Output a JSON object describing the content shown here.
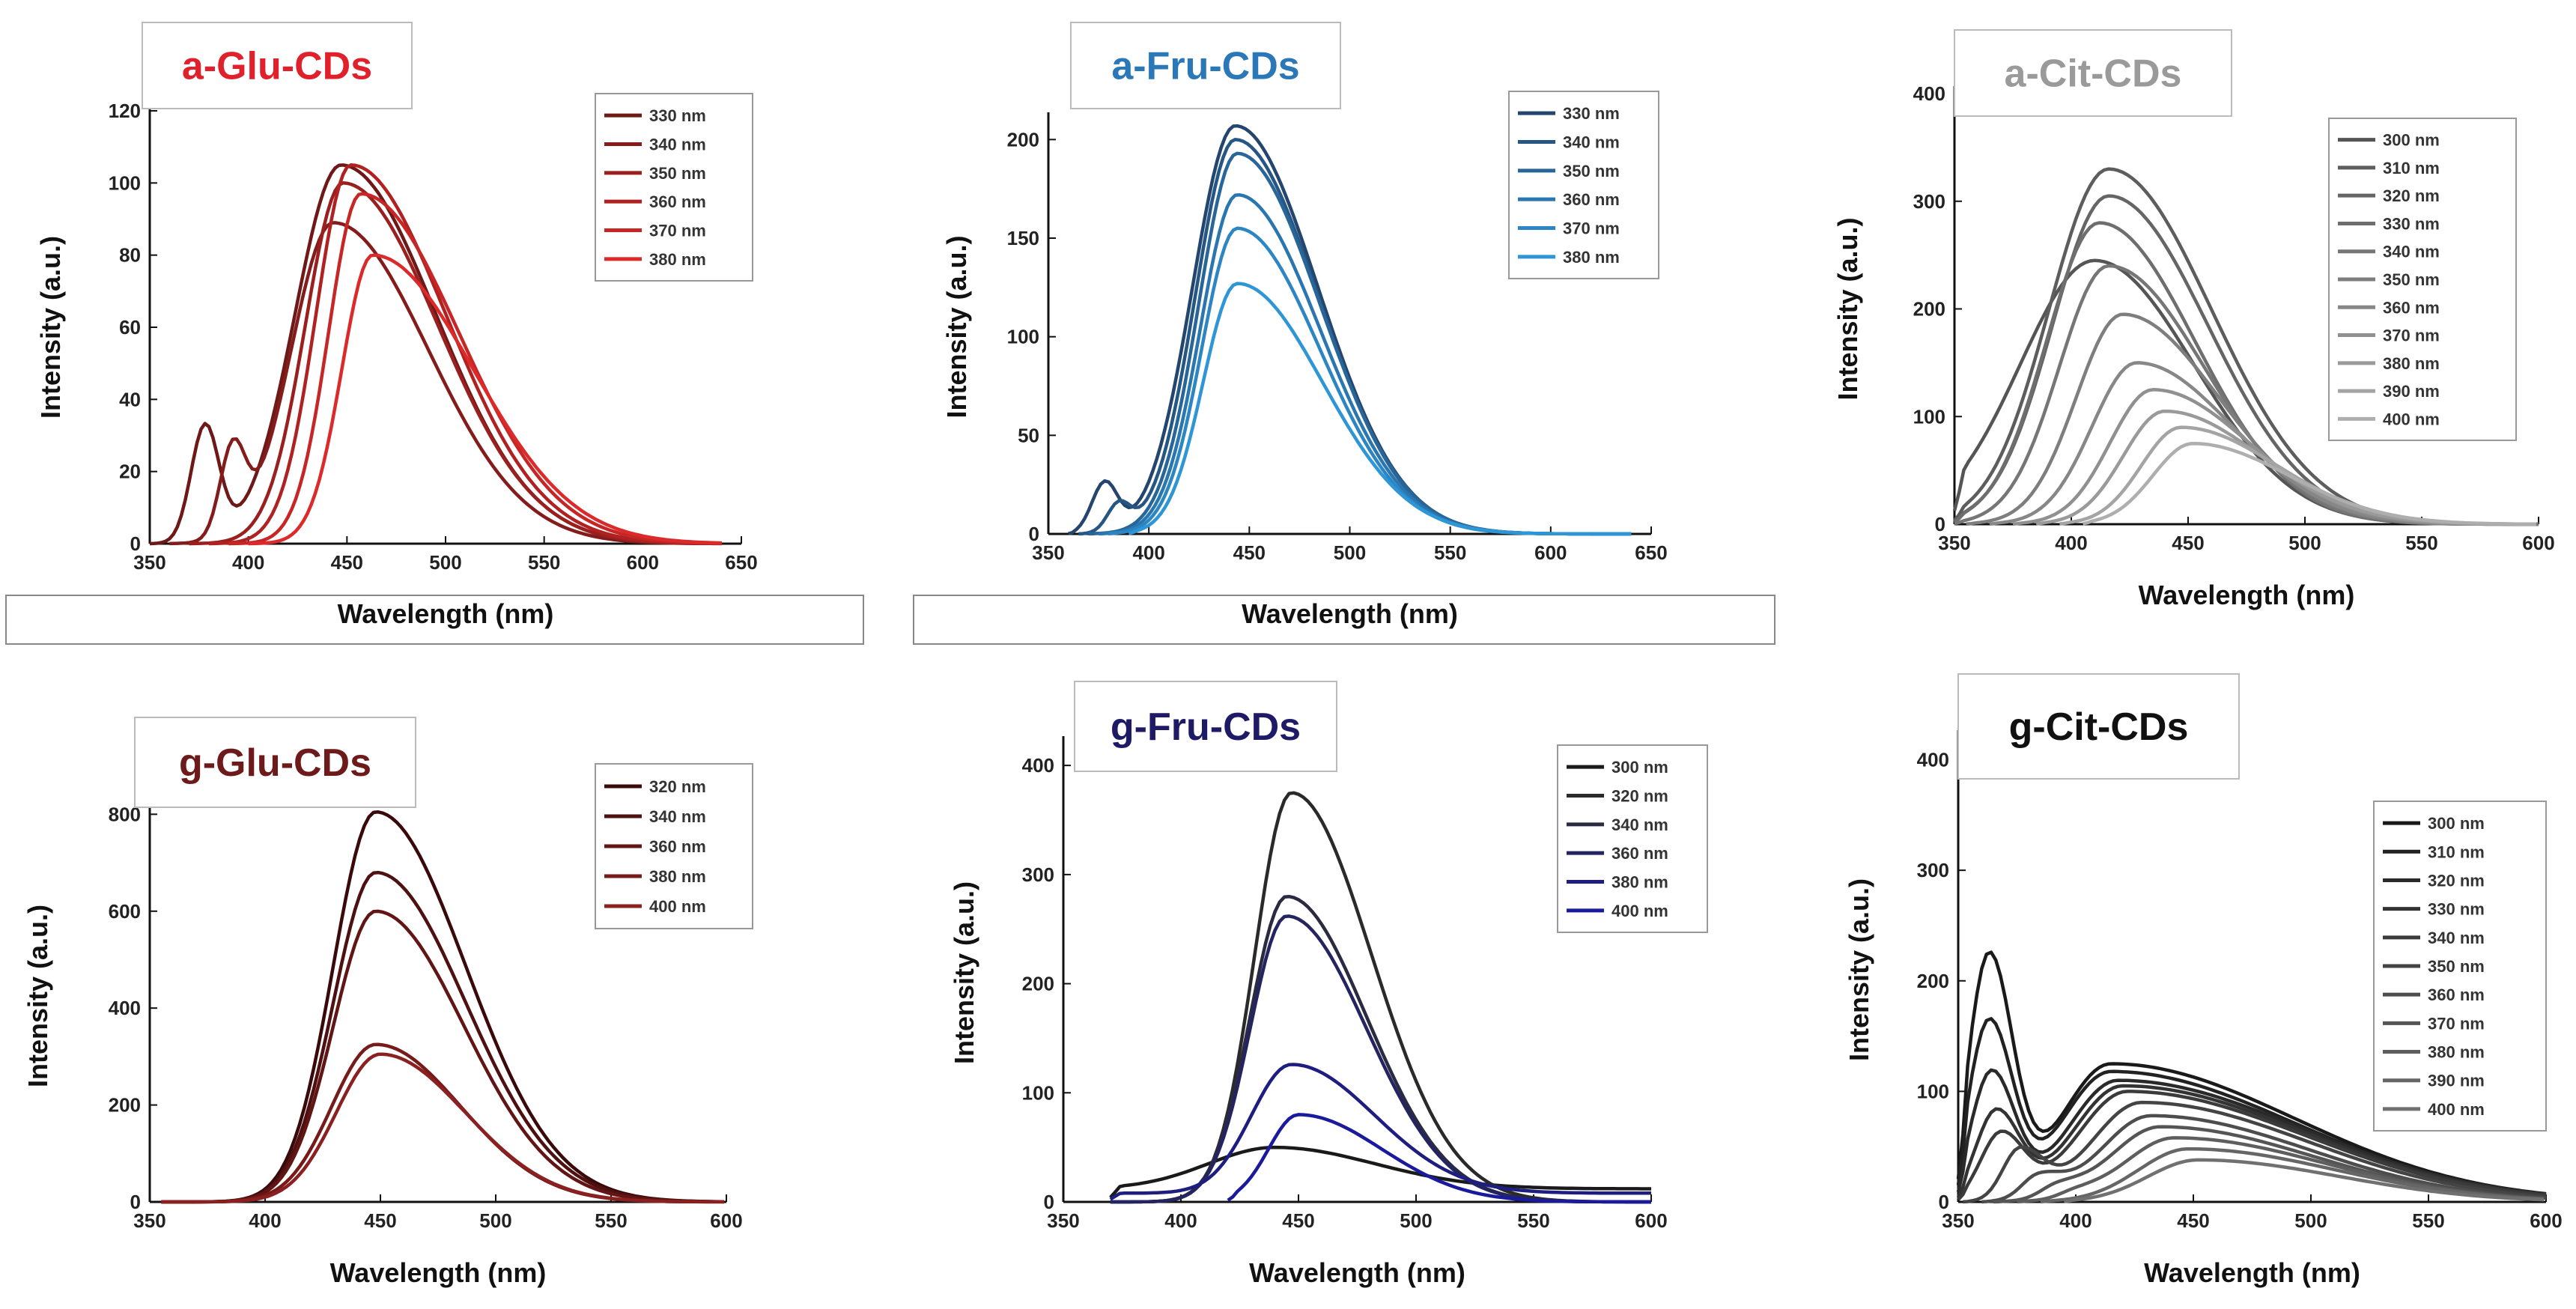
{
  "chart_data": [
    {
      "id": "a-glu",
      "type": "line",
      "title": "a-Glu-CDs",
      "title_color": "#e0202a",
      "xlabel": "Wavelength (nm)",
      "ylabel": "Intensity (a.u.)",
      "xlim": [
        350,
        650
      ],
      "ylim": [
        0,
        120
      ],
      "xticks": [
        350,
        400,
        450,
        500,
        550,
        600,
        650
      ],
      "yticks": [
        0,
        20,
        40,
        60,
        80,
        100,
        120
      ],
      "series": [
        {
          "name": "330 nm",
          "color": "#6e1818",
          "start": 350,
          "end": 640,
          "peak": 447,
          "amp": 105,
          "wl": 33,
          "wr": 68,
          "shoulder": [
            378,
            32,
            10
          ]
        },
        {
          "name": "340 nm",
          "color": "#841c1c",
          "start": 360,
          "end": 640,
          "peak": 443,
          "amp": 89,
          "wl": 30,
          "wr": 68,
          "shoulder": [
            392,
            24,
            9
          ]
        },
        {
          "name": "350 nm",
          "color": "#9a1f1f",
          "start": 370,
          "end": 640,
          "peak": 448,
          "amp": 100,
          "wl": 27,
          "wr": 68
        },
        {
          "name": "360 nm",
          "color": "#b02222",
          "start": 380,
          "end": 640,
          "peak": 452,
          "amp": 105,
          "wl": 25,
          "wr": 68
        },
        {
          "name": "370 nm",
          "color": "#c72626",
          "start": 390,
          "end": 640,
          "peak": 457,
          "amp": 97,
          "wl": 23,
          "wr": 70
        },
        {
          "name": "380 nm",
          "color": "#dc2a2a",
          "start": 400,
          "end": 640,
          "peak": 463,
          "amp": 80,
          "wl": 22,
          "wr": 72
        }
      ]
    },
    {
      "id": "a-fru",
      "type": "line",
      "title": "a-Fru-CDs",
      "title_color": "#2a78b8",
      "xlabel": "Wavelength (nm)",
      "ylabel": "Intensity (a.u.)",
      "xlim": [
        350,
        650
      ],
      "ylim": [
        0,
        210
      ],
      "xticks": [
        350,
        400,
        450,
        500,
        550,
        600,
        650
      ],
      "yticks": [
        0,
        50,
        100,
        150,
        200
      ],
      "series": [
        {
          "name": "330 nm",
          "color": "#23456e",
          "start": 360,
          "end": 640,
          "peak": 443,
          "amp": 207,
          "wl": 30,
          "wr": 58,
          "shoulder": [
            378,
            25,
            9
          ]
        },
        {
          "name": "340 nm",
          "color": "#255684",
          "start": 365,
          "end": 640,
          "peak": 443,
          "amp": 200,
          "wl": 28,
          "wr": 58,
          "shoulder": [
            385,
            14,
            8
          ]
        },
        {
          "name": "350 nm",
          "color": "#28669a",
          "start": 370,
          "end": 640,
          "peak": 444,
          "amp": 193,
          "wl": 27,
          "wr": 58
        },
        {
          "name": "360 nm",
          "color": "#2a76b0",
          "start": 375,
          "end": 640,
          "peak": 444,
          "amp": 172,
          "wl": 26,
          "wr": 58
        },
        {
          "name": "370 nm",
          "color": "#2c86c4",
          "start": 380,
          "end": 640,
          "peak": 444,
          "amp": 155,
          "wl": 25,
          "wr": 58
        },
        {
          "name": "380 nm",
          "color": "#2e96d6",
          "start": 390,
          "end": 640,
          "peak": 444,
          "amp": 127,
          "wl": 24,
          "wr": 60
        }
      ]
    },
    {
      "id": "a-cit",
      "type": "line",
      "title": "a-Cit-CDs",
      "title_color": "#9a9a9a",
      "xlabel": "Wavelength (nm)",
      "ylabel": "Intensity (a.u.)",
      "xlim": [
        350,
        600
      ],
      "ylim": [
        0,
        400
      ],
      "xticks": [
        350,
        400,
        450,
        500,
        550,
        600
      ],
      "yticks": [
        0,
        100,
        200,
        300,
        400
      ],
      "series": [
        {
          "name": "300 nm",
          "color": "#555555",
          "start": 350,
          "end": 600,
          "peak": 410,
          "amp": 245,
          "wl": 45,
          "wr": 60
        },
        {
          "name": "310 nm",
          "color": "#5d5d5d",
          "start": 350,
          "end": 600,
          "peak": 416,
          "amp": 330,
          "wl": 36,
          "wr": 62
        },
        {
          "name": "320 nm",
          "color": "#656565",
          "start": 350,
          "end": 600,
          "peak": 416,
          "amp": 305,
          "wl": 34,
          "wr": 60
        },
        {
          "name": "330 nm",
          "color": "#6e6e6e",
          "start": 350,
          "end": 600,
          "peak": 412,
          "amp": 280,
          "wl": 32,
          "wr": 58
        },
        {
          "name": "340 nm",
          "color": "#767676",
          "start": 350,
          "end": 600,
          "peak": 416,
          "amp": 240,
          "wl": 30,
          "wr": 58
        },
        {
          "name": "350 nm",
          "color": "#7e7e7e",
          "start": 355,
          "end": 600,
          "peak": 422,
          "amp": 195,
          "wl": 28,
          "wr": 58
        },
        {
          "name": "360 nm",
          "color": "#878787",
          "start": 365,
          "end": 600,
          "peak": 428,
          "amp": 150,
          "wl": 27,
          "wr": 58
        },
        {
          "name": "370 nm",
          "color": "#909090",
          "start": 375,
          "end": 600,
          "peak": 435,
          "amp": 125,
          "wl": 26,
          "wr": 58
        },
        {
          "name": "380 nm",
          "color": "#9a9a9a",
          "start": 385,
          "end": 600,
          "peak": 440,
          "amp": 105,
          "wl": 25,
          "wr": 58
        },
        {
          "name": "390 nm",
          "color": "#a4a4a4",
          "start": 395,
          "end": 600,
          "peak": 447,
          "amp": 90,
          "wl": 24,
          "wr": 58
        },
        {
          "name": "400 nm",
          "color": "#aeaeae",
          "start": 405,
          "end": 600,
          "peak": 452,
          "amp": 75,
          "wl": 24,
          "wr": 58
        }
      ]
    },
    {
      "id": "g-glu",
      "type": "line",
      "title": "g-Glu-CDs",
      "title_color": "#6e1a1a",
      "xlabel": "Wavelength (nm)",
      "ylabel": "Intensity (a.u.)",
      "xlim": [
        350,
        600
      ],
      "ylim": [
        0,
        850
      ],
      "xticks": [
        350,
        400,
        450,
        500,
        550,
        600
      ],
      "yticks": [
        0,
        200,
        400,
        600,
        800
      ],
      "series": [
        {
          "name": "320 nm",
          "color": "#3a0a0a",
          "start": 355,
          "end": 600,
          "peak": 448,
          "amp": 805,
          "wl": 26,
          "wr": 55
        },
        {
          "name": "340 nm",
          "color": "#4e1010",
          "start": 355,
          "end": 600,
          "peak": 448,
          "amp": 680,
          "wl": 26,
          "wr": 55
        },
        {
          "name": "360 nm",
          "color": "#621515",
          "start": 355,
          "end": 600,
          "peak": 448,
          "amp": 600,
          "wl": 26,
          "wr": 54
        },
        {
          "name": "380 nm",
          "color": "#761a1a",
          "start": 355,
          "end": 600,
          "peak": 448,
          "amp": 325,
          "wl": 27,
          "wr": 52
        },
        {
          "name": "400 nm",
          "color": "#8a2020",
          "start": 355,
          "end": 600,
          "peak": 450,
          "amp": 305,
          "wl": 27,
          "wr": 52
        }
      ]
    },
    {
      "id": "g-fru",
      "type": "line",
      "title": "g-Fru-CDs",
      "title_color": "#1e1a66",
      "xlabel": "Wavelength (nm)",
      "ylabel": "Intensity (a.u.)",
      "xlim": [
        350,
        600
      ],
      "ylim": [
        0,
        420
      ],
      "xticks": [
        350,
        400,
        450,
        500,
        550,
        600
      ],
      "yticks": [
        0,
        100,
        200,
        300,
        400
      ],
      "series": [
        {
          "name": "300 nm",
          "color": "#1a1a1a",
          "start": 370,
          "end": 600,
          "peak": 440,
          "amp": 38,
          "wl": 40,
          "wr": 60,
          "base": 12
        },
        {
          "name": "320 nm",
          "color": "#2a2a2a",
          "start": 370,
          "end": 600,
          "peak": 447,
          "amp": 375,
          "wl": 22,
          "wr": 48
        },
        {
          "name": "340 nm",
          "color": "#2a2a40",
          "start": 370,
          "end": 600,
          "peak": 445,
          "amp": 280,
          "wl": 22,
          "wr": 48
        },
        {
          "name": "360 nm",
          "color": "#242460",
          "start": 370,
          "end": 600,
          "peak": 445,
          "amp": 262,
          "wl": 22,
          "wr": 48
        },
        {
          "name": "380 nm",
          "color": "#1e1e80",
          "start": 370,
          "end": 600,
          "peak": 447,
          "amp": 118,
          "wl": 24,
          "wr": 50,
          "base": 8
        },
        {
          "name": "400 nm",
          "color": "#1a1a9c",
          "start": 420,
          "end": 600,
          "peak": 450,
          "amp": 80,
          "wl": 18,
          "wr": 50
        }
      ]
    },
    {
      "id": "g-cit",
      "type": "line",
      "title": "g-Cit-CDs",
      "title_color": "#111111",
      "xlabel": "Wavelength (nm)",
      "ylabel": "Intensity (a.u.)",
      "xlim": [
        350,
        600
      ],
      "ylim": [
        0,
        420
      ],
      "xticks": [
        350,
        400,
        450,
        500,
        550,
        600
      ],
      "yticks": [
        0,
        100,
        200,
        300,
        400
      ],
      "series": [
        {
          "name": "300 nm",
          "color": "#1a1a1a",
          "start": 350,
          "end": 600,
          "peak": 363,
          "amp": 220,
          "wl": 12,
          "wr": 14,
          "base2": [
            415,
            125,
            110
          ]
        },
        {
          "name": "310 nm",
          "color": "#222222",
          "start": 350,
          "end": 600,
          "peak": 363,
          "amp": 160,
          "wl": 12,
          "wr": 14,
          "base2": [
            415,
            118,
            110
          ]
        },
        {
          "name": "320 nm",
          "color": "#2a2a2a",
          "start": 350,
          "end": 600,
          "peak": 364,
          "amp": 115,
          "wl": 12,
          "wr": 14,
          "base2": [
            418,
            110,
            110
          ]
        },
        {
          "name": "330 nm",
          "color": "#333333",
          "start": 350,
          "end": 600,
          "peak": 366,
          "amp": 80,
          "wl": 12,
          "wr": 14,
          "base2": [
            420,
            105,
            108
          ]
        },
        {
          "name": "340 nm",
          "color": "#3b3b3b",
          "start": 350,
          "end": 600,
          "peak": 368,
          "amp": 60,
          "wl": 12,
          "wr": 14,
          "base2": [
            422,
            100,
            106
          ]
        },
        {
          "name": "350 nm",
          "color": "#444444",
          "start": 352,
          "end": 600,
          "peak": 376,
          "amp": 45,
          "wl": 10,
          "wr": 14,
          "base2": [
            428,
            90,
            100
          ]
        },
        {
          "name": "360 nm",
          "color": "#4d4d4d",
          "start": 360,
          "end": 600,
          "peak": 384,
          "amp": 20,
          "wl": 10,
          "wr": 14,
          "base2": [
            432,
            78,
            95
          ]
        },
        {
          "name": "370 nm",
          "color": "#555555",
          "start": 365,
          "end": 600,
          "peak": 392,
          "amp": 10,
          "wl": 10,
          "wr": 14,
          "base2": [
            436,
            68,
            92
          ]
        },
        {
          "name": "380 nm",
          "color": "#5e5e5e",
          "start": 375,
          "end": 600,
          "peak": 400,
          "amp": 5,
          "wl": 10,
          "wr": 14,
          "base2": [
            442,
            58,
            90
          ]
        },
        {
          "name": "390 nm",
          "color": "#666666",
          "start": 385,
          "end": 600,
          "peak": 405,
          "amp": 0,
          "wl": 10,
          "wr": 14,
          "base2": [
            448,
            48,
            88
          ]
        },
        {
          "name": "400 nm",
          "color": "#707070",
          "start": 395,
          "end": 600,
          "peak": 410,
          "amp": 0,
          "wl": 10,
          "wr": 14,
          "base2": [
            452,
            38,
            85
          ]
        }
      ]
    }
  ]
}
